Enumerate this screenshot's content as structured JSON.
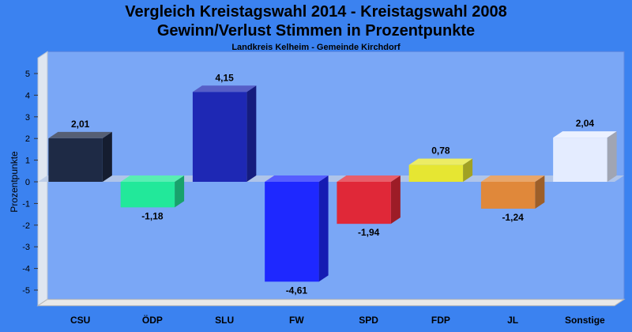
{
  "chart_data": {
    "type": "bar",
    "title": "Vergleich Kreistagswahl 2014 - Kreistagswahl 2008",
    "title2": "Gewinn/Verlust Stimmen in Prozentpunkte",
    "subtitle": "Landkreis Kelheim - Gemeinde Kirchdorf",
    "ylabel": "Prozentpunkte",
    "ylim": [
      -5.5,
      5.5
    ],
    "yticks": [
      "5",
      "4",
      "3",
      "2",
      "1",
      "0",
      "-1",
      "-2",
      "-3",
      "-4",
      "-5"
    ],
    "categories": [
      "CSU",
      "ÖDP",
      "SLU",
      "FW",
      "SPD",
      "FDP",
      "JL",
      "Sonstige"
    ],
    "values": [
      2.01,
      -1.18,
      4.15,
      -4.61,
      -1.94,
      0.78,
      -1.24,
      2.04
    ],
    "value_labels": [
      "2,01",
      "-1,18",
      "4,15",
      "-4,61",
      "-1,94",
      "0,78",
      "-1,24",
      "2,04"
    ],
    "colors": [
      "#1e2a45",
      "#22e89a",
      "#1e28b4",
      "#1e28ff",
      "#e02838",
      "#e6e632",
      "#e0883a",
      "#e4ecff"
    ],
    "grid": false,
    "legend": "none"
  }
}
